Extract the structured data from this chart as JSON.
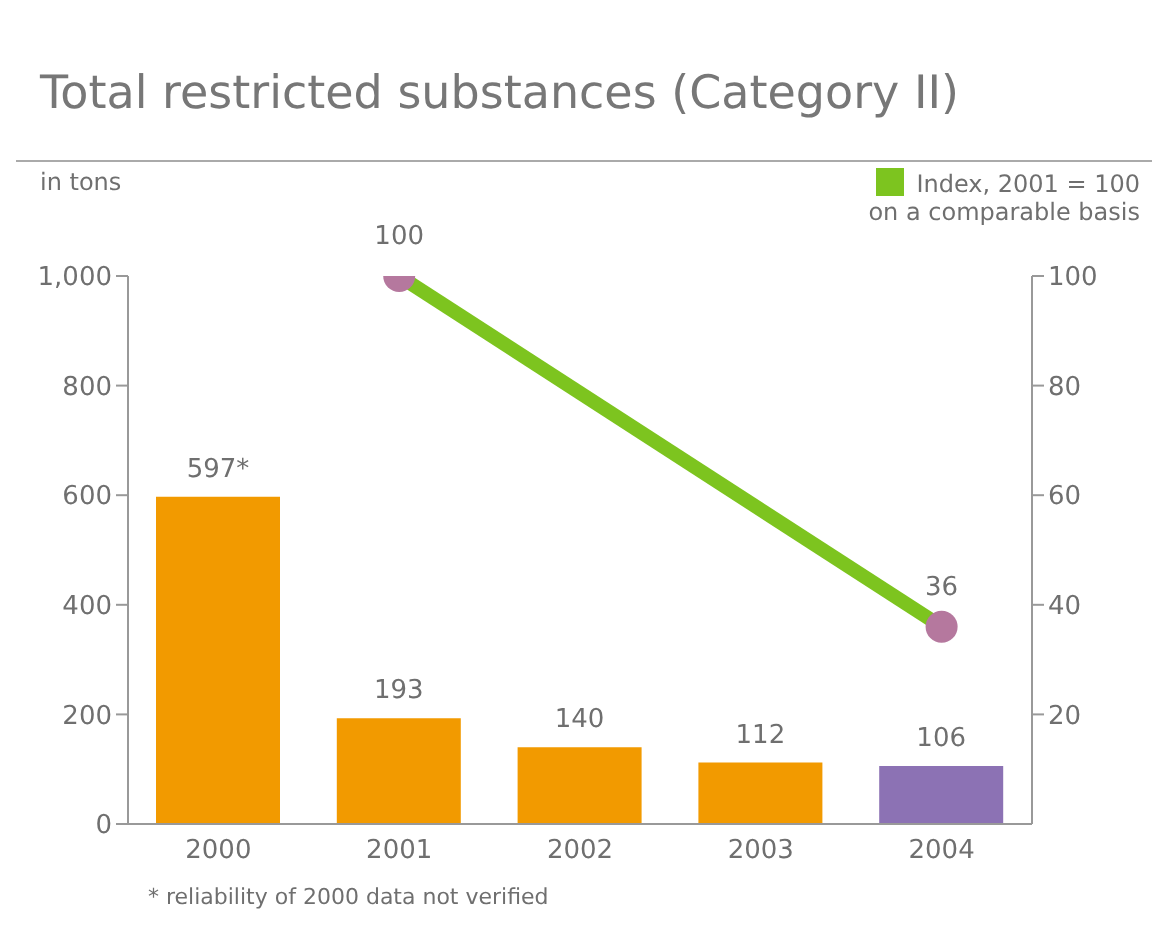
{
  "chart_data": {
    "type": "bar",
    "title": "Total restricted substances (Category II)",
    "ylabel": "in tons",
    "categories": [
      "2000",
      "2001",
      "2002",
      "2003",
      "2004"
    ],
    "series": [
      {
        "colors": [
          "#f29a00",
          "#f29a00",
          "#f29a00",
          "#f29a00",
          "#8c72b4"
        ],
        "values": [
          597,
          193,
          140,
          112,
          106
        ],
        "value_labels": [
          "597*",
          "193",
          "140",
          "112",
          "106"
        ]
      },
      {
        "type": "line",
        "axis": "y2",
        "name": "Index, 2001 = 100",
        "color": "#7dc41f",
        "colors": [
          null,
          "#b5789e",
          null,
          null,
          "#b5789e"
        ],
        "values": [
          null,
          100,
          null,
          null,
          36
        ],
        "value_labels": [
          null,
          "100",
          null,
          null,
          "36"
        ]
      }
    ],
    "ylim": [
      0,
      1000
    ],
    "yticks": [
      0,
      200,
      400,
      600,
      800,
      {
        "value": 1000,
        "label": "1,000"
      }
    ],
    "y2lim": [
      0,
      100
    ],
    "y2ticks": [
      20,
      40,
      60,
      80,
      100
    ],
    "marker": "circle",
    "legend": "top right",
    "annotations": [
      "on a comparable basis",
      "* reliability of 2000 data not verified"
    ]
  }
}
